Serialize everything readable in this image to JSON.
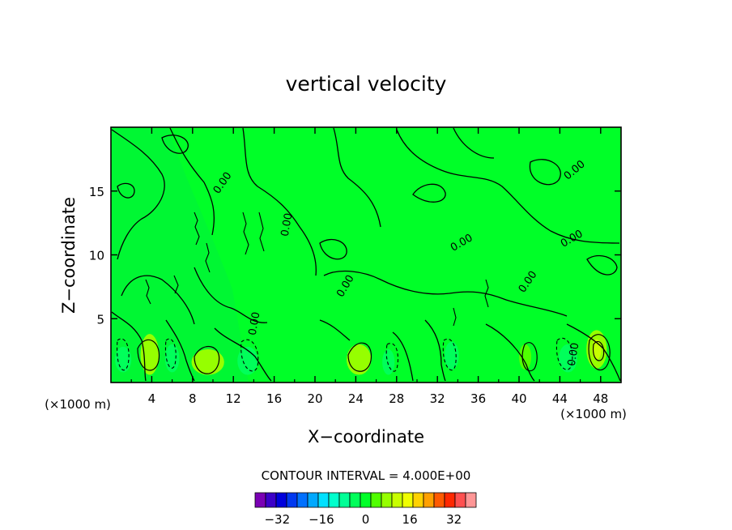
{
  "chart_data": {
    "type": "heatmap",
    "title": "vertical velocity",
    "xlabel": "X−coordinate",
    "ylabel": "Z−coordinate",
    "x_unit_label": "(×1000 m)",
    "xlim": [
      0,
      50
    ],
    "ylim": [
      0,
      20
    ],
    "x_ticks": [
      4,
      8,
      12,
      16,
      20,
      24,
      28,
      32,
      36,
      40,
      44,
      48
    ],
    "y_ticks": [
      5,
      10,
      15
    ],
    "contour_interval_label": "CONTOUR INTERVAL = 4.000E+00",
    "contour_line_label": "0.00",
    "background_value": 0,
    "colorbar": {
      "levels": [
        -40,
        -36,
        -32,
        -28,
        -24,
        -20,
        -16,
        -12,
        -8,
        -4,
        0,
        4,
        8,
        12,
        16,
        20,
        24,
        28,
        32,
        36,
        40
      ],
      "colors": [
        "#7a00b4",
        "#3c00c8",
        "#0000dc",
        "#0038f0",
        "#0070ff",
        "#00a8ff",
        "#00e0ff",
        "#00ffcc",
        "#00ff96",
        "#00ff5a",
        "#00ff28",
        "#50ff00",
        "#96ff00",
        "#c8ff00",
        "#f0ff00",
        "#ffd200",
        "#ffa000",
        "#ff5a00",
        "#ff2800",
        "#ff5050",
        "#ff9696"
      ],
      "tick_labels": [
        "−32",
        "−16",
        "0",
        "16",
        "32"
      ],
      "tick_values": [
        -32,
        -16,
        0,
        16,
        32
      ]
    },
    "cells": [
      {
        "x": 1.2,
        "z": 1.8,
        "rx": 0.8,
        "rz": 1.0,
        "value": -6
      },
      {
        "x": 3.8,
        "z": 2.2,
        "rx": 0.9,
        "rz": 1.6,
        "value": 6
      },
      {
        "x": 6.0,
        "z": 1.9,
        "rx": 0.7,
        "rz": 1.1,
        "value": -5
      },
      {
        "x": 9.5,
        "z": 1.6,
        "rx": 1.6,
        "rz": 1.0,
        "value": 6
      },
      {
        "x": 13.4,
        "z": 1.7,
        "rx": 1.0,
        "rz": 1.1,
        "value": -5
      },
      {
        "x": 24.3,
        "z": 1.8,
        "rx": 1.2,
        "rz": 1.2,
        "value": 6
      },
      {
        "x": 27.2,
        "z": 1.6,
        "rx": 0.6,
        "rz": 1.0,
        "value": -5
      },
      {
        "x": 33.4,
        "z": 2.1,
        "rx": 0.7,
        "rz": 1.1,
        "value": -5
      },
      {
        "x": 40.6,
        "z": 2.0,
        "rx": 0.6,
        "rz": 1.0,
        "value": 5
      },
      {
        "x": 44.8,
        "z": 1.9,
        "rx": 0.9,
        "rz": 1.1,
        "value": -6
      },
      {
        "x": 47.6,
        "z": 2.6,
        "rx": 1.0,
        "rz": 1.5,
        "value": 6
      },
      {
        "x": 47.6,
        "z": 2.6,
        "rx": 0.45,
        "rz": 0.8,
        "value": 10
      }
    ]
  }
}
